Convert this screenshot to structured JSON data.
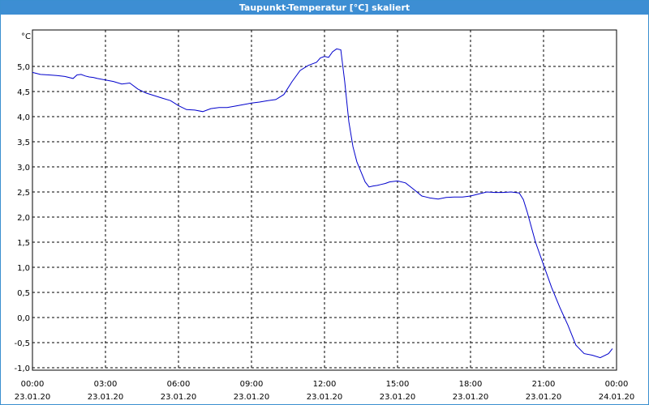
{
  "window": {
    "title": "Taupunkt-Temperatur [°C] skaliert"
  },
  "chart_data": {
    "type": "line",
    "title": "Taupunkt-Temperatur [°C] skaliert",
    "ylabel": "°C",
    "xlabel": "",
    "ylim": [
      -1.0,
      5.5
    ],
    "yticks": [
      "5,0",
      "4,5",
      "4,0",
      "3,5",
      "3,0",
      "2,5",
      "2,0",
      "1,5",
      "1,0",
      "0,5",
      "0,0",
      "-0,5",
      "-1,0"
    ],
    "ytick_values": [
      5.0,
      4.5,
      4.0,
      3.5,
      3.0,
      2.5,
      2.0,
      1.5,
      1.0,
      0.5,
      0.0,
      -0.5,
      -1.0
    ],
    "xlim": [
      0,
      24
    ],
    "xticks": [
      {
        "time": "00:00",
        "date": "23.01.20"
      },
      {
        "time": "03:00",
        "date": "23.01.20"
      },
      {
        "time": "06:00",
        "date": "23.01.20"
      },
      {
        "time": "09:00",
        "date": "23.01.20"
      },
      {
        "time": "12:00",
        "date": "23.01.20"
      },
      {
        "time": "15:00",
        "date": "23.01.20"
      },
      {
        "time": "18:00",
        "date": "23.01.20"
      },
      {
        "time": "21:00",
        "date": "23.01.20"
      },
      {
        "time": "00:00",
        "date": "24.01.20"
      }
    ],
    "grid": true,
    "line_color": "#0000cc",
    "series": [
      {
        "x": [
          0.0,
          0.33,
          0.67,
          1.0,
          1.33,
          1.67,
          1.83,
          2.0,
          2.17,
          2.33,
          2.5,
          2.67,
          3.0,
          3.33,
          3.67,
          4.0,
          4.33,
          4.67,
          5.0,
          5.33,
          5.67,
          6.0,
          6.33,
          6.67,
          7.0,
          7.33,
          7.67,
          8.0,
          8.33,
          8.67,
          9.0,
          9.33,
          9.67,
          10.0,
          10.33,
          10.67,
          11.0,
          11.33,
          11.67,
          11.83,
          12.0,
          12.17,
          12.33,
          12.5,
          12.67,
          12.83,
          13.0,
          13.17,
          13.33,
          13.5,
          13.67,
          13.83,
          14.0,
          14.17,
          14.33,
          14.5,
          14.67,
          15.0,
          15.33,
          15.67,
          16.0,
          16.17,
          16.33,
          16.67,
          17.0,
          17.33,
          17.67,
          18.0,
          18.33,
          18.67,
          19.0,
          19.33,
          19.67,
          20.0,
          20.17,
          20.33,
          20.5,
          20.67,
          21.0,
          21.33,
          21.67,
          22.0,
          22.33,
          22.67,
          23.0,
          23.33,
          23.67,
          23.83
        ],
        "y": [
          4.88,
          4.84,
          4.83,
          4.82,
          4.8,
          4.76,
          4.83,
          4.84,
          4.81,
          4.79,
          4.78,
          4.76,
          4.73,
          4.7,
          4.65,
          4.67,
          4.55,
          4.47,
          4.42,
          4.37,
          4.32,
          4.22,
          4.14,
          4.13,
          4.1,
          4.16,
          4.18,
          4.18,
          4.21,
          4.24,
          4.27,
          4.29,
          4.32,
          4.34,
          4.44,
          4.7,
          4.92,
          5.02,
          5.08,
          5.17,
          5.2,
          5.18,
          5.29,
          5.35,
          5.33,
          4.7,
          3.9,
          3.4,
          3.1,
          2.9,
          2.7,
          2.6,
          2.62,
          2.63,
          2.65,
          2.67,
          2.7,
          2.72,
          2.68,
          2.55,
          2.42,
          2.4,
          2.38,
          2.36,
          2.39,
          2.4,
          2.4,
          2.42,
          2.46,
          2.5,
          2.49,
          2.49,
          2.5,
          2.48,
          2.35,
          2.1,
          1.8,
          1.5,
          1.05,
          0.6,
          0.2,
          -0.15,
          -0.55,
          -0.72,
          -0.75,
          -0.8,
          -0.72,
          -0.62
        ]
      }
    ]
  }
}
